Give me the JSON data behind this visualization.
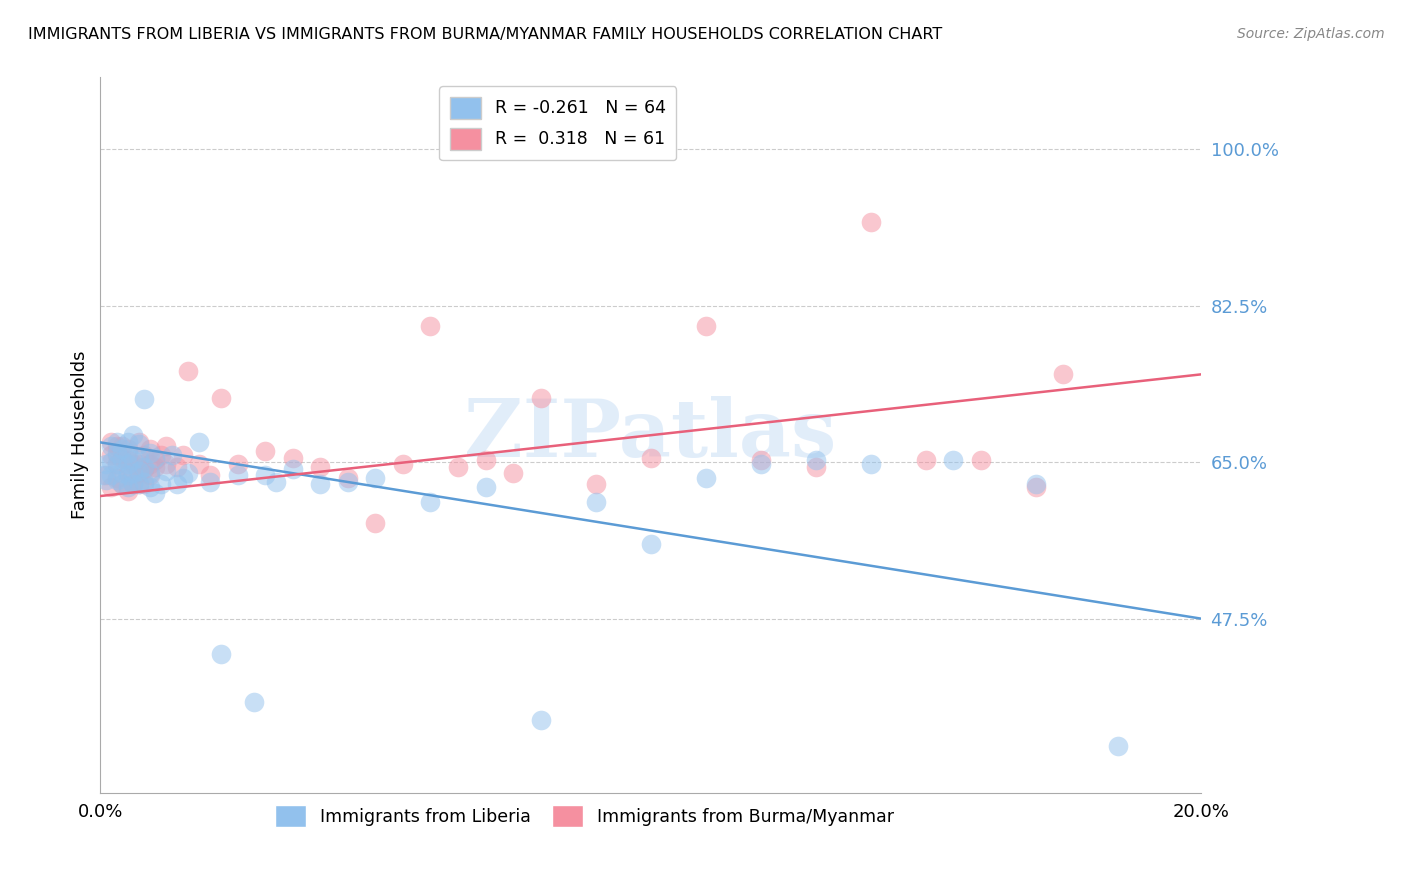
{
  "title": "IMMIGRANTS FROM LIBERIA VS IMMIGRANTS FROM BURMA/MYANMAR FAMILY HOUSEHOLDS CORRELATION CHART",
  "source": "Source: ZipAtlas.com",
  "ylabel": "Family Households",
  "yticks": [
    0.475,
    0.65,
    0.825,
    1.0
  ],
  "ytick_labels": [
    "47.5%",
    "65.0%",
    "82.5%",
    "100.0%"
  ],
  "xlim": [
    0.0,
    0.2
  ],
  "ylim": [
    0.28,
    1.08
  ],
  "legend_blue_R": "-0.261",
  "legend_blue_N": "64",
  "legend_pink_R": "0.318",
  "legend_pink_N": "61",
  "blue_color": "#92C1ED",
  "pink_color": "#F590A0",
  "line_blue_color": "#5B9BD5",
  "line_pink_color": "#E8607A",
  "watermark": "ZIPatlas",
  "blue_scatter_x": [
    0.0005,
    0.001,
    0.001,
    0.002,
    0.002,
    0.002,
    0.003,
    0.003,
    0.003,
    0.003,
    0.004,
    0.004,
    0.004,
    0.004,
    0.005,
    0.005,
    0.005,
    0.005,
    0.005,
    0.006,
    0.006,
    0.006,
    0.006,
    0.007,
    0.007,
    0.007,
    0.007,
    0.008,
    0.008,
    0.008,
    0.009,
    0.009,
    0.009,
    0.01,
    0.01,
    0.011,
    0.012,
    0.013,
    0.014,
    0.015,
    0.016,
    0.018,
    0.02,
    0.022,
    0.025,
    0.028,
    0.03,
    0.032,
    0.035,
    0.04,
    0.045,
    0.05,
    0.06,
    0.07,
    0.08,
    0.09,
    0.1,
    0.11,
    0.12,
    0.13,
    0.14,
    0.155,
    0.17,
    0.185
  ],
  "blue_scatter_y": [
    0.635,
    0.63,
    0.648,
    0.635,
    0.65,
    0.668,
    0.63,
    0.648,
    0.66,
    0.672,
    0.625,
    0.638,
    0.652,
    0.665,
    0.622,
    0.635,
    0.648,
    0.66,
    0.672,
    0.625,
    0.638,
    0.652,
    0.68,
    0.625,
    0.64,
    0.655,
    0.67,
    0.628,
    0.645,
    0.72,
    0.622,
    0.638,
    0.66,
    0.615,
    0.655,
    0.625,
    0.64,
    0.658,
    0.625,
    0.632,
    0.638,
    0.672,
    0.628,
    0.435,
    0.635,
    0.382,
    0.635,
    0.628,
    0.642,
    0.625,
    0.628,
    0.632,
    0.605,
    0.622,
    0.362,
    0.605,
    0.558,
    0.632,
    0.648,
    0.652,
    0.648,
    0.652,
    0.625,
    0.332
  ],
  "pink_scatter_x": [
    0.001,
    0.002,
    0.002,
    0.003,
    0.003,
    0.003,
    0.004,
    0.004,
    0.005,
    0.005,
    0.005,
    0.006,
    0.006,
    0.007,
    0.007,
    0.007,
    0.008,
    0.008,
    0.009,
    0.009,
    0.01,
    0.011,
    0.012,
    0.014,
    0.016,
    0.018,
    0.02,
    0.025,
    0.03,
    0.035,
    0.04,
    0.05,
    0.06,
    0.07,
    0.08,
    0.09,
    0.1,
    0.11,
    0.12,
    0.13,
    0.14,
    0.15,
    0.16,
    0.17,
    0.175,
    0.002,
    0.003,
    0.004,
    0.005,
    0.006,
    0.007,
    0.008,
    0.009,
    0.01,
    0.012,
    0.015,
    0.022,
    0.045,
    0.055,
    0.065,
    0.075
  ],
  "pink_scatter_y": [
    0.635,
    0.622,
    0.658,
    0.632,
    0.648,
    0.668,
    0.625,
    0.655,
    0.618,
    0.638,
    0.665,
    0.625,
    0.648,
    0.625,
    0.648,
    0.672,
    0.625,
    0.658,
    0.635,
    0.665,
    0.645,
    0.658,
    0.668,
    0.645,
    0.752,
    0.648,
    0.635,
    0.648,
    0.662,
    0.655,
    0.645,
    0.582,
    0.802,
    0.652,
    0.722,
    0.625,
    0.655,
    0.802,
    0.652,
    0.645,
    0.918,
    0.652,
    0.652,
    0.622,
    0.748,
    0.672,
    0.658,
    0.668,
    0.652,
    0.635,
    0.638,
    0.642,
    0.648,
    0.652,
    0.648,
    0.658,
    0.722,
    0.632,
    0.648,
    0.645,
    0.638
  ]
}
